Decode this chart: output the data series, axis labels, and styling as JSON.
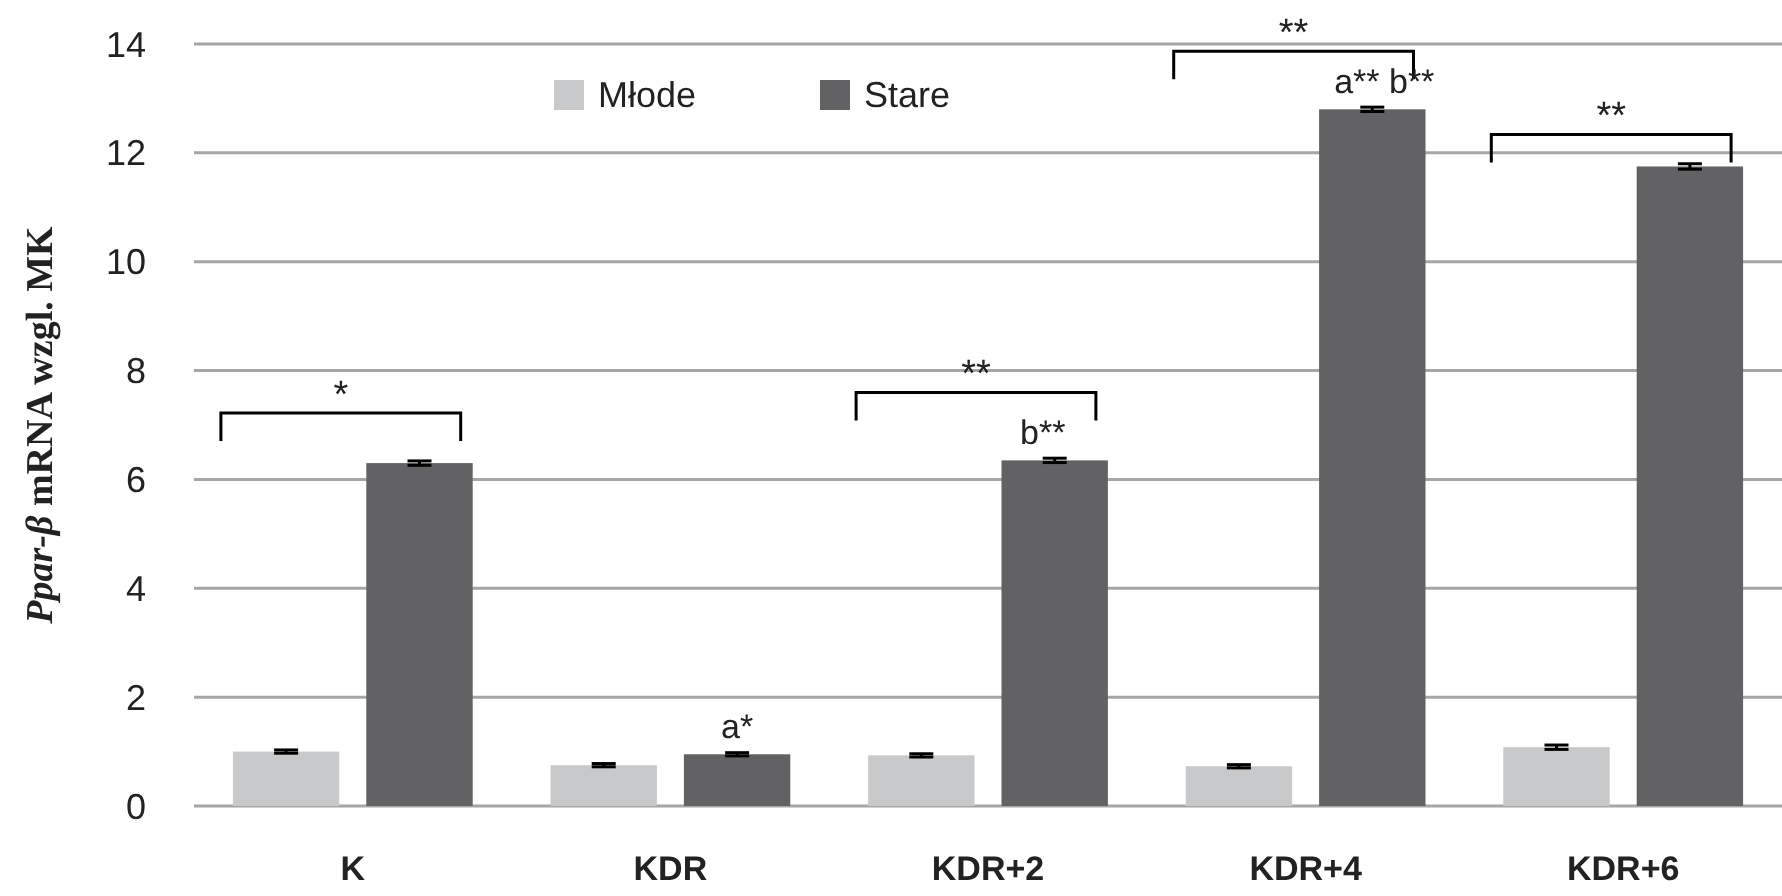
{
  "chart_data": {
    "type": "bar",
    "ylabel": "Ppar-β mRNA wzgl. MK",
    "categories": [
      "K",
      "KDR",
      "KDR+2",
      "KDR+4",
      "KDR+6"
    ],
    "series": [
      {
        "name": "Młode",
        "color": "#c8c9ca",
        "values": [
          1.0,
          0.75,
          0.93,
          0.73,
          1.08
        ],
        "errors": [
          0.03,
          0.03,
          0.03,
          0.03,
          0.04
        ]
      },
      {
        "name": "Stare",
        "color": "#626264",
        "values": [
          6.3,
          0.95,
          6.35,
          12.8,
          11.75
        ],
        "errors": [
          0.04,
          0.03,
          0.04,
          0.04,
          0.05
        ]
      }
    ],
    "ylim": [
      0,
      14
    ],
    "yticks": [
      0,
      2,
      4,
      6,
      8,
      10,
      12,
      14
    ],
    "grid": "y",
    "legend": "top",
    "annotations": [
      "*",
      "a*",
      "**",
      "b**",
      "**",
      "a** b**",
      "**"
    ]
  }
}
